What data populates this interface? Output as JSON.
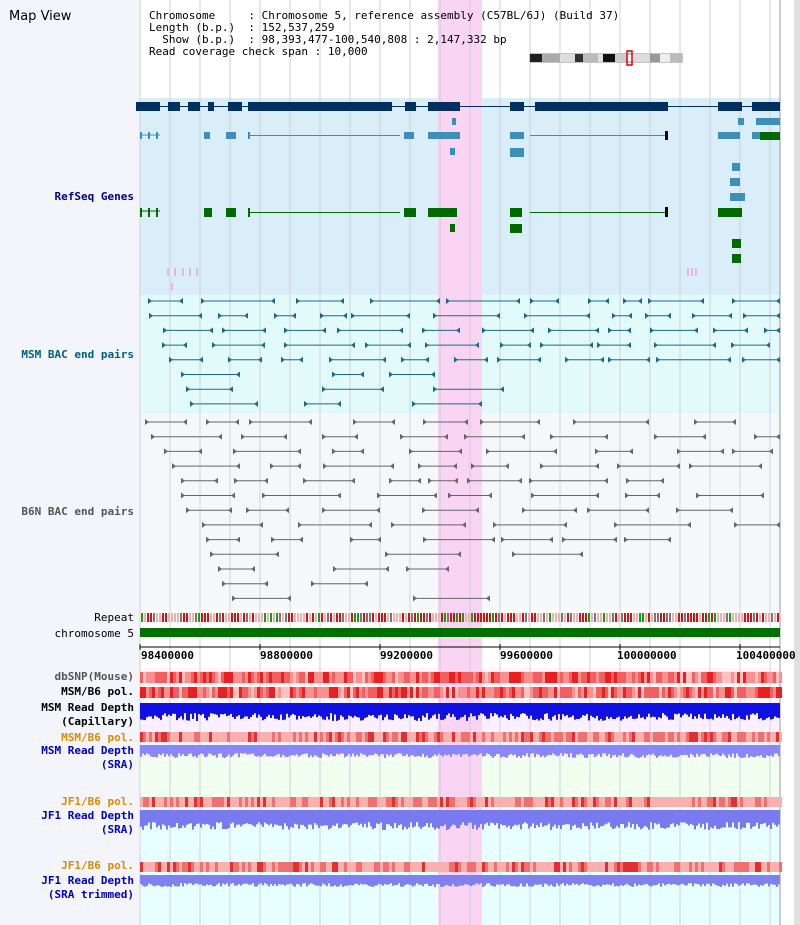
{
  "header": {
    "title": "Map View",
    "info": [
      {
        "label": "Chromosome     ",
        "value": "Chromosome 5, reference assembly (C57BL/6J) (Build 37)"
      },
      {
        "label": "Length (b.p.)  ",
        "value": "152,537,259"
      },
      {
        "label": "  Show (b.p.)  ",
        "value": "98,393,477-100,540,808 : 2,147,332 bp"
      },
      {
        "label": "Read coverage check span",
        "value": "10,000"
      }
    ]
  },
  "tracks": {
    "refseq": {
      "label": "RefSeq Genes",
      "color": "#000080"
    },
    "msm_bac": {
      "label": "MSM BAC end pairs",
      "color": "#006080"
    },
    "b6n_bac": {
      "label": "B6N BAC end pairs",
      "color": "#555555"
    },
    "repeat": {
      "label": "Repeat"
    },
    "chromosome": {
      "label": "chromosome 5"
    },
    "dbsnp": {
      "label": "dbSNP(Mouse)",
      "color": "#555555"
    },
    "msm_b6_pol": {
      "label": "MSM/B6 pol.",
      "color": "#000000"
    },
    "msm_cap": {
      "label": "MSM Read Depth\n(Capillary)",
      "color": "#000000"
    },
    "msm_b6_pol2": {
      "label": "MSM/B6 pol.",
      "color": "#e08a00"
    },
    "msm_sra": {
      "label": "MSM Read Depth\n(SRA)",
      "color": "#0000c0"
    },
    "jf1_pol": {
      "label": "JF1/B6 pol.",
      "color": "#e08a00"
    },
    "jf1_sra": {
      "label": "JF1 Read Depth\n(SRA)",
      "color": "#0000c0"
    },
    "jf1_pol2": {
      "label": "JF1/B6 pol.",
      "color": "#e08a00"
    },
    "jf1_trim": {
      "label": "JF1 Read Depth\n(SRA trimmed)",
      "color": "#0000c0"
    }
  },
  "axis": {
    "ticks": [
      "98400000",
      "98800000",
      "99200000",
      "99600000",
      "100000000",
      "100400000"
    ]
  },
  "colors": {
    "highlight": "#f9d4f3",
    "refseq_bg": "#d9eef8",
    "bac_bg": "#e3fafa",
    "gene_dark": "#00305f",
    "gene_mid": "#3c8fb8",
    "gene_green": "#006a00",
    "chromosome": "#007000",
    "depth": "#2020e0",
    "depth_light": "#8080ff"
  }
}
